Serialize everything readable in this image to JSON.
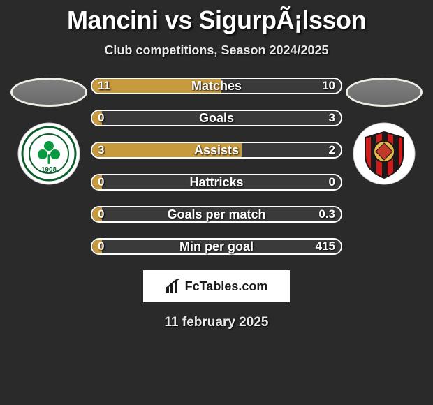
{
  "background_color": "#2a2a2a",
  "title": {
    "left_name": "Mancini",
    "vs": "vs",
    "right_name": "SigurpÃ¡lsson",
    "color": "#ffffff",
    "fontsize": 36
  },
  "subtitle": {
    "text": "Club competitions, Season 2024/2025",
    "fontsize": 18,
    "color": "#e8e8e8"
  },
  "players": {
    "left": {
      "oval_border": "#f0ede6",
      "oval_fill": "#7a7a7a"
    },
    "right": {
      "oval_border": "#f0ede6",
      "oval_fill": "#7a7a7a"
    }
  },
  "clubs": {
    "left": {
      "name": "Panathinaikos",
      "badge": {
        "outer_fill": "#ffffff",
        "inner_fill": "#ffffff",
        "ring_color": "#0a5f2e",
        "accent": "#0a9a3f",
        "year": "1908"
      }
    },
    "right": {
      "name": "Vikingur",
      "badge": {
        "outer_fill": "#ffffff",
        "stripe_colors": [
          "#d11a1a",
          "#1a1a1a"
        ],
        "center_fill": "#e6b84a",
        "center_accent": "#c0392b"
      }
    }
  },
  "stats": {
    "bar_border_color": "#ffffff",
    "left_color": "#c79a3d",
    "right_color": "#3a3a3a",
    "label_color": "#ffffff",
    "label_fontsize": 18,
    "value_fontsize": 17,
    "rows": [
      {
        "label": "Matches",
        "left": "11",
        "right": "10",
        "left_pct": 52
      },
      {
        "label": "Goals",
        "left": "0",
        "right": "3",
        "left_pct": 4
      },
      {
        "label": "Assists",
        "left": "3",
        "right": "2",
        "left_pct": 60
      },
      {
        "label": "Hattricks",
        "left": "0",
        "right": "0",
        "left_pct": 4
      },
      {
        "label": "Goals per match",
        "left": "0",
        "right": "0.3",
        "left_pct": 4
      },
      {
        "label": "Min per goal",
        "left": "0",
        "right": "415",
        "left_pct": 4
      }
    ]
  },
  "logo": {
    "text": "FcTables.com",
    "background": "#ffffff",
    "text_color": "#1a1a1a"
  },
  "date": {
    "text": "11 february 2025",
    "color": "#eaeaea",
    "fontsize": 19
  }
}
